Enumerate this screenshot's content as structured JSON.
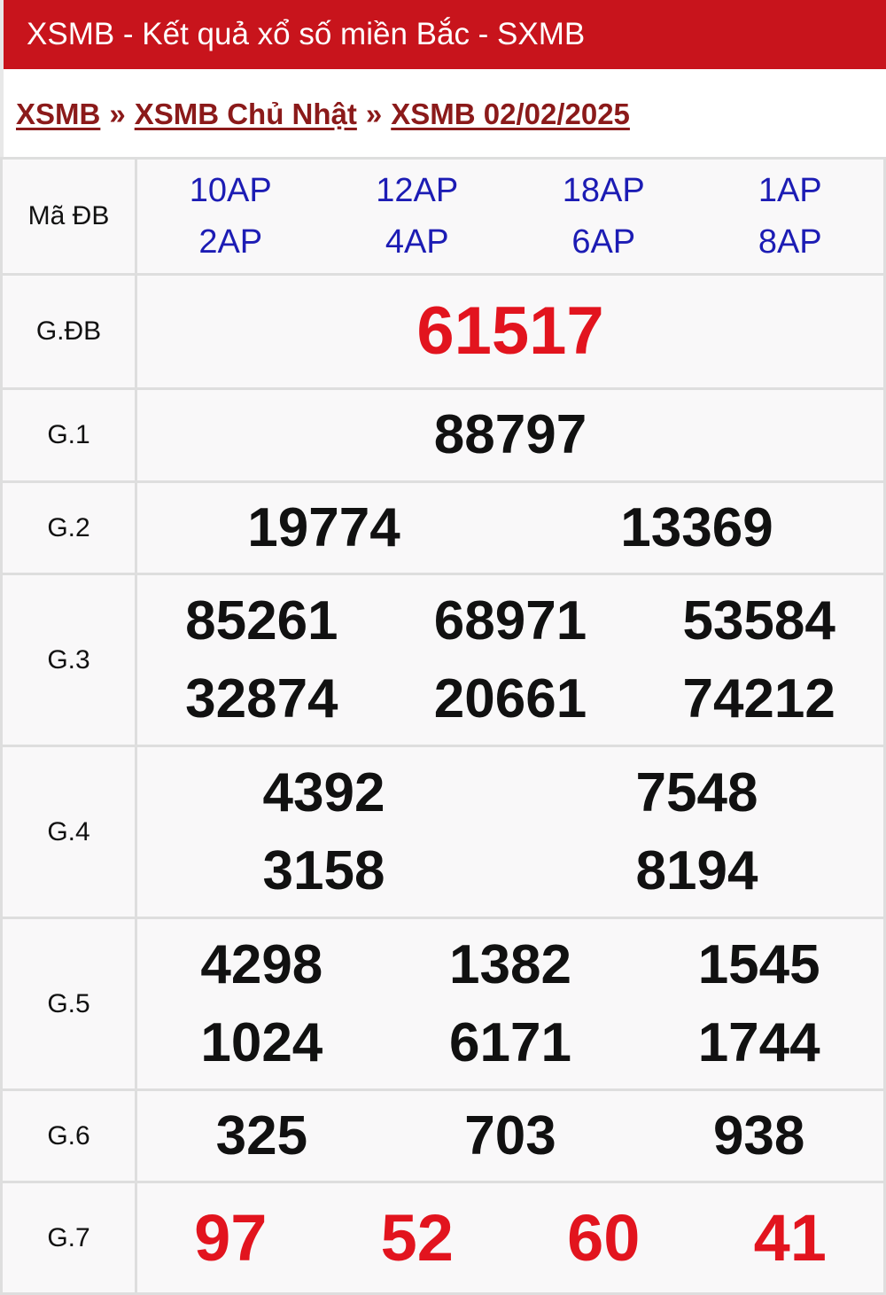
{
  "header": {
    "title": "XSMB - Kết quả xổ số miền Bắc - SXMB"
  },
  "breadcrumb": [
    {
      "label": "XSMB"
    },
    {
      "label": "XSMB Chủ Nhật"
    },
    {
      "label": "XSMB 02/02/2025"
    }
  ],
  "breadcrumb_sep": "»",
  "colors": {
    "header_bg": "#c8141c",
    "breadcrumb": "#8b1a1a",
    "code": "#1c1cb4",
    "highlight": "#e2141e"
  },
  "ma_db": {
    "label": "Mã ĐB",
    "codes": [
      [
        "10AP",
        "2AP"
      ],
      [
        "12AP",
        "4AP"
      ],
      [
        "18AP",
        "6AP"
      ],
      [
        "1AP",
        "8AP"
      ]
    ]
  },
  "prizes": [
    {
      "label": "G.ĐB",
      "cols": 1,
      "numbers": [
        "61517"
      ]
    },
    {
      "label": "G.1",
      "cols": 1,
      "numbers": [
        "88797"
      ]
    },
    {
      "label": "G.2",
      "cols": 2,
      "numbers": [
        "19774",
        "13369"
      ]
    },
    {
      "label": "G.3",
      "cols": 3,
      "numbers": [
        "85261",
        "68971",
        "53584",
        "32874",
        "20661",
        "74212"
      ]
    },
    {
      "label": "G.4",
      "cols": 2,
      "numbers": [
        "4392",
        "7548",
        "3158",
        "8194"
      ]
    },
    {
      "label": "G.5",
      "cols": 3,
      "numbers": [
        "4298",
        "1382",
        "1545",
        "1024",
        "6171",
        "1744"
      ]
    },
    {
      "label": "G.6",
      "cols": 3,
      "numbers": [
        "325",
        "703",
        "938"
      ]
    },
    {
      "label": "G.7",
      "cols": 4,
      "numbers": [
        "97",
        "52",
        "60",
        "41"
      ]
    }
  ]
}
